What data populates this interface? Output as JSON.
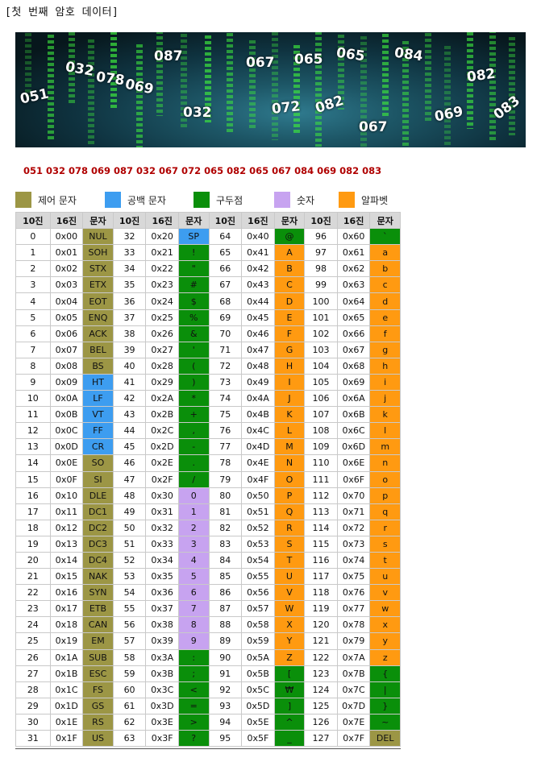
{
  "title": "[첫 번째 암호 데이터]",
  "banner": {
    "numbers": [
      "051",
      "032",
      "078",
      "069",
      "087",
      "032",
      "067",
      "065",
      "065",
      "084",
      "082",
      "072",
      "082",
      "067",
      "069",
      "083"
    ]
  },
  "sequence": "051 032 078 069 087 032 067 072 065 082 065 067 084 069 082 083",
  "legend": [
    {
      "label": "제어 문자",
      "color": "#9c9645"
    },
    {
      "label": "공백 문자",
      "color": "#3d9df0"
    },
    {
      "label": "구두점",
      "color": "#0a8f0a"
    },
    {
      "label": "숫자",
      "color": "#c7a3f0"
    },
    {
      "label": "알파벳",
      "color": "#ff9a11"
    }
  ],
  "table": {
    "headers": [
      "10진",
      "16진",
      "문자",
      "10진",
      "16진",
      "문자",
      "10진",
      "16진",
      "문자",
      "10진",
      "16진",
      "문자"
    ],
    "rows": [
      [
        [
          "0",
          "0x00",
          "NUL",
          "ctrl"
        ],
        [
          "32",
          "0x20",
          "SP",
          "ws"
        ],
        [
          "64",
          "0x40",
          "@",
          "punct"
        ],
        [
          "96",
          "0x60",
          "`",
          "punct"
        ]
      ],
      [
        [
          "1",
          "0x01",
          "SOH",
          "ctrl"
        ],
        [
          "33",
          "0x21",
          "!",
          "punct"
        ],
        [
          "65",
          "0x41",
          "A",
          "alpha"
        ],
        [
          "97",
          "0x61",
          "a",
          "alpha"
        ]
      ],
      [
        [
          "2",
          "0x02",
          "STX",
          "ctrl"
        ],
        [
          "34",
          "0x22",
          "\"",
          "punct"
        ],
        [
          "66",
          "0x42",
          "B",
          "alpha"
        ],
        [
          "98",
          "0x62",
          "b",
          "alpha"
        ]
      ],
      [
        [
          "3",
          "0x03",
          "ETX",
          "ctrl"
        ],
        [
          "35",
          "0x23",
          "#",
          "punct"
        ],
        [
          "67",
          "0x43",
          "C",
          "alpha"
        ],
        [
          "99",
          "0x63",
          "c",
          "alpha"
        ]
      ],
      [
        [
          "4",
          "0x04",
          "EOT",
          "ctrl"
        ],
        [
          "36",
          "0x24",
          "$",
          "punct"
        ],
        [
          "68",
          "0x44",
          "D",
          "alpha"
        ],
        [
          "100",
          "0x64",
          "d",
          "alpha"
        ]
      ],
      [
        [
          "5",
          "0x05",
          "ENQ",
          "ctrl"
        ],
        [
          "37",
          "0x25",
          "%",
          "punct"
        ],
        [
          "69",
          "0x45",
          "E",
          "alpha"
        ],
        [
          "101",
          "0x65",
          "e",
          "alpha"
        ]
      ],
      [
        [
          "6",
          "0x06",
          "ACK",
          "ctrl"
        ],
        [
          "38",
          "0x26",
          "&",
          "punct"
        ],
        [
          "70",
          "0x46",
          "F",
          "alpha"
        ],
        [
          "102",
          "0x66",
          "f",
          "alpha"
        ]
      ],
      [
        [
          "7",
          "0x07",
          "BEL",
          "ctrl"
        ],
        [
          "39",
          "0x27",
          "'",
          "punct"
        ],
        [
          "71",
          "0x47",
          "G",
          "alpha"
        ],
        [
          "103",
          "0x67",
          "g",
          "alpha"
        ]
      ],
      [
        [
          "8",
          "0x08",
          "BS",
          "ctrl"
        ],
        [
          "40",
          "0x28",
          "(",
          "punct"
        ],
        [
          "72",
          "0x48",
          "H",
          "alpha"
        ],
        [
          "104",
          "0x68",
          "h",
          "alpha"
        ]
      ],
      [
        [
          "9",
          "0x09",
          "HT",
          "ws"
        ],
        [
          "41",
          "0x29",
          ")",
          "punct"
        ],
        [
          "73",
          "0x49",
          "I",
          "alpha"
        ],
        [
          "105",
          "0x69",
          "i",
          "alpha"
        ]
      ],
      [
        [
          "10",
          "0x0A",
          "LF",
          "ws"
        ],
        [
          "42",
          "0x2A",
          "*",
          "punct"
        ],
        [
          "74",
          "0x4A",
          "J",
          "alpha"
        ],
        [
          "106",
          "0x6A",
          "j",
          "alpha"
        ]
      ],
      [
        [
          "11",
          "0x0B",
          "VT",
          "ws"
        ],
        [
          "43",
          "0x2B",
          "+",
          "punct"
        ],
        [
          "75",
          "0x4B",
          "K",
          "alpha"
        ],
        [
          "107",
          "0x6B",
          "k",
          "alpha"
        ]
      ],
      [
        [
          "12",
          "0x0C",
          "FF",
          "ws"
        ],
        [
          "44",
          "0x2C",
          ",",
          "punct"
        ],
        [
          "76",
          "0x4C",
          "L",
          "alpha"
        ],
        [
          "108",
          "0x6C",
          "l",
          "alpha"
        ]
      ],
      [
        [
          "13",
          "0x0D",
          "CR",
          "ws"
        ],
        [
          "45",
          "0x2D",
          "-",
          "punct"
        ],
        [
          "77",
          "0x4D",
          "M",
          "alpha"
        ],
        [
          "109",
          "0x6D",
          "m",
          "alpha"
        ]
      ],
      [
        [
          "14",
          "0x0E",
          "SO",
          "ctrl"
        ],
        [
          "46",
          "0x2E",
          ".",
          "punct"
        ],
        [
          "78",
          "0x4E",
          "N",
          "alpha"
        ],
        [
          "110",
          "0x6E",
          "n",
          "alpha"
        ]
      ],
      [
        [
          "15",
          "0x0F",
          "SI",
          "ctrl"
        ],
        [
          "47",
          "0x2F",
          "/",
          "punct"
        ],
        [
          "79",
          "0x4F",
          "O",
          "alpha"
        ],
        [
          "111",
          "0x6F",
          "o",
          "alpha"
        ]
      ],
      [
        [
          "16",
          "0x10",
          "DLE",
          "ctrl"
        ],
        [
          "48",
          "0x30",
          "0",
          "digit"
        ],
        [
          "80",
          "0x50",
          "P",
          "alpha"
        ],
        [
          "112",
          "0x70",
          "p",
          "alpha"
        ]
      ],
      [
        [
          "17",
          "0x11",
          "DC1",
          "ctrl"
        ],
        [
          "49",
          "0x31",
          "1",
          "digit"
        ],
        [
          "81",
          "0x51",
          "Q",
          "alpha"
        ],
        [
          "113",
          "0x71",
          "q",
          "alpha"
        ]
      ],
      [
        [
          "18",
          "0x12",
          "DC2",
          "ctrl"
        ],
        [
          "50",
          "0x32",
          "2",
          "digit"
        ],
        [
          "82",
          "0x52",
          "R",
          "alpha"
        ],
        [
          "114",
          "0x72",
          "r",
          "alpha"
        ]
      ],
      [
        [
          "19",
          "0x13",
          "DC3",
          "ctrl"
        ],
        [
          "51",
          "0x33",
          "3",
          "digit"
        ],
        [
          "83",
          "0x53",
          "S",
          "alpha"
        ],
        [
          "115",
          "0x73",
          "s",
          "alpha"
        ]
      ],
      [
        [
          "20",
          "0x14",
          "DC4",
          "ctrl"
        ],
        [
          "52",
          "0x34",
          "4",
          "digit"
        ],
        [
          "84",
          "0x54",
          "T",
          "alpha"
        ],
        [
          "116",
          "0x74",
          "t",
          "alpha"
        ]
      ],
      [
        [
          "21",
          "0x15",
          "NAK",
          "ctrl"
        ],
        [
          "53",
          "0x35",
          "5",
          "digit"
        ],
        [
          "85",
          "0x55",
          "U",
          "alpha"
        ],
        [
          "117",
          "0x75",
          "u",
          "alpha"
        ]
      ],
      [
        [
          "22",
          "0x16",
          "SYN",
          "ctrl"
        ],
        [
          "54",
          "0x36",
          "6",
          "digit"
        ],
        [
          "86",
          "0x56",
          "V",
          "alpha"
        ],
        [
          "118",
          "0x76",
          "v",
          "alpha"
        ]
      ],
      [
        [
          "23",
          "0x17",
          "ETB",
          "ctrl"
        ],
        [
          "55",
          "0x37",
          "7",
          "digit"
        ],
        [
          "87",
          "0x57",
          "W",
          "alpha"
        ],
        [
          "119",
          "0x77",
          "w",
          "alpha"
        ]
      ],
      [
        [
          "24",
          "0x18",
          "CAN",
          "ctrl"
        ],
        [
          "56",
          "0x38",
          "8",
          "digit"
        ],
        [
          "88",
          "0x58",
          "X",
          "alpha"
        ],
        [
          "120",
          "0x78",
          "x",
          "alpha"
        ]
      ],
      [
        [
          "25",
          "0x19",
          "EM",
          "ctrl"
        ],
        [
          "57",
          "0x39",
          "9",
          "digit"
        ],
        [
          "89",
          "0x59",
          "Y",
          "alpha"
        ],
        [
          "121",
          "0x79",
          "y",
          "alpha"
        ]
      ],
      [
        [
          "26",
          "0x1A",
          "SUB",
          "ctrl"
        ],
        [
          "58",
          "0x3A",
          ":",
          "punct"
        ],
        [
          "90",
          "0x5A",
          "Z",
          "alpha"
        ],
        [
          "122",
          "0x7A",
          "z",
          "alpha"
        ]
      ],
      [
        [
          "27",
          "0x1B",
          "ESC",
          "ctrl"
        ],
        [
          "59",
          "0x3B",
          ";",
          "punct"
        ],
        [
          "91",
          "0x5B",
          "[",
          "punct"
        ],
        [
          "123",
          "0x7B",
          "{",
          "punct"
        ]
      ],
      [
        [
          "28",
          "0x1C",
          "FS",
          "ctrl"
        ],
        [
          "60",
          "0x3C",
          "<",
          "punct"
        ],
        [
          "92",
          "0x5C",
          "₩",
          "punct"
        ],
        [
          "124",
          "0x7C",
          "|",
          "punct"
        ]
      ],
      [
        [
          "29",
          "0x1D",
          "GS",
          "ctrl"
        ],
        [
          "61",
          "0x3D",
          "=",
          "punct"
        ],
        [
          "93",
          "0x5D",
          "]",
          "punct"
        ],
        [
          "125",
          "0x7D",
          "}",
          "punct"
        ]
      ],
      [
        [
          "30",
          "0x1E",
          "RS",
          "ctrl"
        ],
        [
          "62",
          "0x3E",
          ">",
          "punct"
        ],
        [
          "94",
          "0x5E",
          "^",
          "punct"
        ],
        [
          "126",
          "0x7E",
          "~",
          "punct"
        ]
      ],
      [
        [
          "31",
          "0x1F",
          "US",
          "ctrl"
        ],
        [
          "63",
          "0x3F",
          "?",
          "punct"
        ],
        [
          "95",
          "0x5F",
          "_",
          "punct"
        ],
        [
          "127",
          "0x7F",
          "DEL",
          "ctrl"
        ]
      ]
    ]
  }
}
